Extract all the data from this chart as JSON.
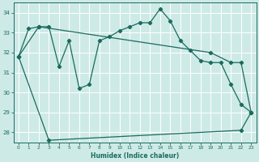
{
  "xlabel": "Humidex (Indice chaleur)",
  "bg_color": "#ceeae7",
  "line_color": "#1a6b5e",
  "grid_color": "#ffffff",
  "xlim": [
    -0.5,
    23.5
  ],
  "ylim": [
    27.5,
    34.5
  ],
  "yticks": [
    28,
    29,
    30,
    31,
    32,
    33,
    34
  ],
  "xticks": [
    0,
    1,
    2,
    3,
    4,
    5,
    6,
    7,
    8,
    9,
    10,
    11,
    12,
    13,
    14,
    15,
    16,
    17,
    18,
    19,
    20,
    21,
    22,
    23
  ],
  "series1": {
    "x": [
      0,
      1,
      2,
      3,
      4,
      5,
      6,
      7,
      8,
      9,
      10,
      11,
      12,
      13,
      14,
      15,
      16,
      17,
      18,
      19,
      20,
      21,
      22,
      23
    ],
    "y": [
      31.8,
      33.2,
      33.3,
      33.3,
      31.3,
      32.6,
      30.2,
      30.4,
      32.6,
      32.8,
      33.1,
      33.3,
      33.5,
      33.5,
      34.2,
      33.6,
      32.6,
      32.1,
      31.6,
      31.5,
      31.5,
      30.4,
      29.4,
      29.0
    ]
  },
  "series2": {
    "x": [
      0,
      3,
      22,
      23
    ],
    "y": [
      31.8,
      27.6,
      28.1,
      29.0
    ]
  },
  "series3": {
    "x": [
      0,
      2,
      19,
      21,
      22,
      23
    ],
    "y": [
      31.8,
      33.3,
      32.0,
      31.5,
      31.5,
      29.0
    ]
  }
}
